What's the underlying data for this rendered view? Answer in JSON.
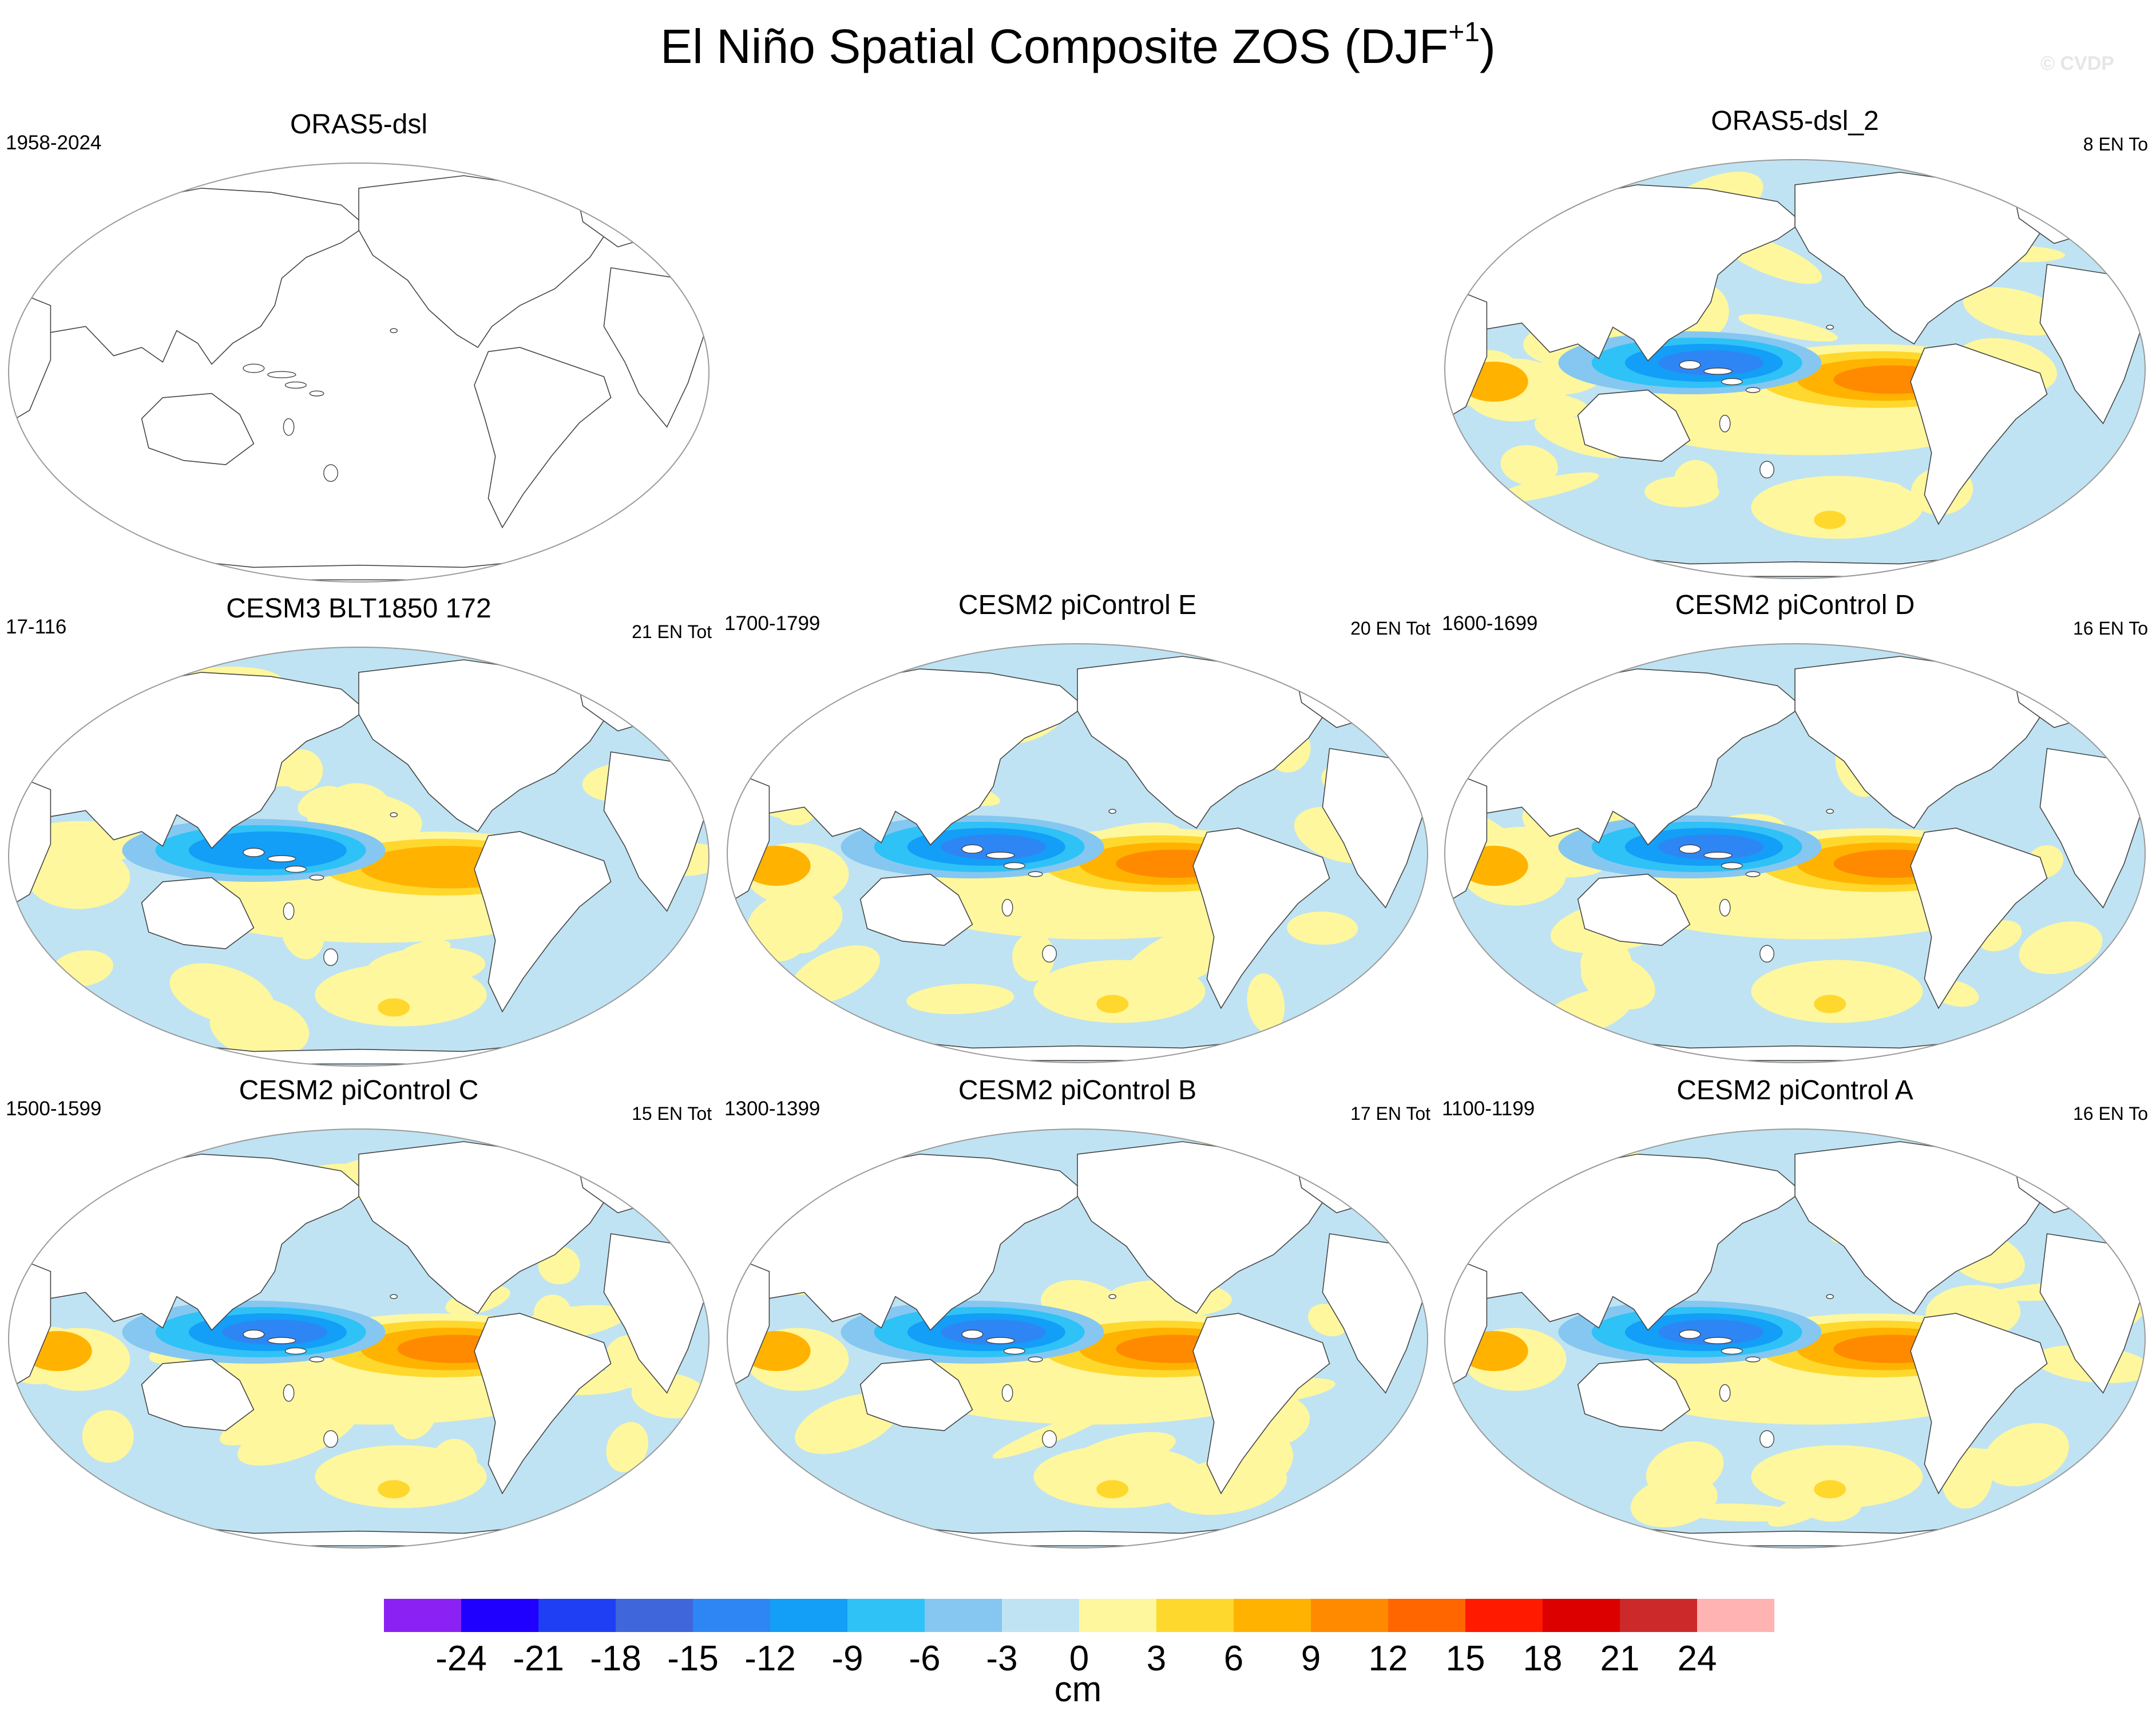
{
  "title": {
    "text": "El Niño Spatial Composite ZOS (DJF",
    "superscript": "+1",
    "closing": ")"
  },
  "watermark": "© CVDP",
  "panels": [
    {
      "title": "ORAS5-dsl",
      "years": "1958-2024",
      "count": "",
      "has_data": false,
      "intensity": 0
    },
    {
      "title": "ORAS5-dsl_2",
      "years": "",
      "count": "8 EN To",
      "has_data": true,
      "intensity": 1.15
    },
    {
      "title": "CESM3 BLT1850 172",
      "years": "17-116",
      "count": "21 EN Tot",
      "has_data": true,
      "intensity": 0.55
    },
    {
      "title": "CESM2 piControl E",
      "years": "1700-1799",
      "count": "20 EN Tot",
      "has_data": true,
      "intensity": 1.0
    },
    {
      "title": "CESM2 piControl D",
      "years": "1600-1699",
      "count": "16 EN To",
      "has_data": true,
      "intensity": 0.95
    },
    {
      "title": "CESM2 piControl C",
      "years": "1500-1599",
      "count": "15 EN Tot",
      "has_data": true,
      "intensity": 0.95
    },
    {
      "title": "CESM2 piControl B",
      "years": "1300-1399",
      "count": "17 EN Tot",
      "has_data": true,
      "intensity": 0.9
    },
    {
      "title": "CESM2 piControl A",
      "years": "1100-1199",
      "count": "16 EN To",
      "has_data": true,
      "intensity": 0.85
    }
  ],
  "colorbar": {
    "units": "cm",
    "tick_labels": [
      "-24",
      "-21",
      "-18",
      "-15",
      "-12",
      "-9",
      "-6",
      "-3",
      "0",
      "3",
      "6",
      "9",
      "12",
      "15",
      "18",
      "21",
      "24"
    ],
    "colors": [
      "#8c21f4",
      "#1f00ff",
      "#1f3ff5",
      "#4066db",
      "#2e86f5",
      "#139ef7",
      "#2ec2f7",
      "#85c7f0",
      "#bfe3f3",
      "#fff79d",
      "#ffd82e",
      "#ffb300",
      "#ff8a00",
      "#ff6600",
      "#ff1a00",
      "#dc0000",
      "#cc2a2a",
      "#ffb3b3"
    ]
  }
}
